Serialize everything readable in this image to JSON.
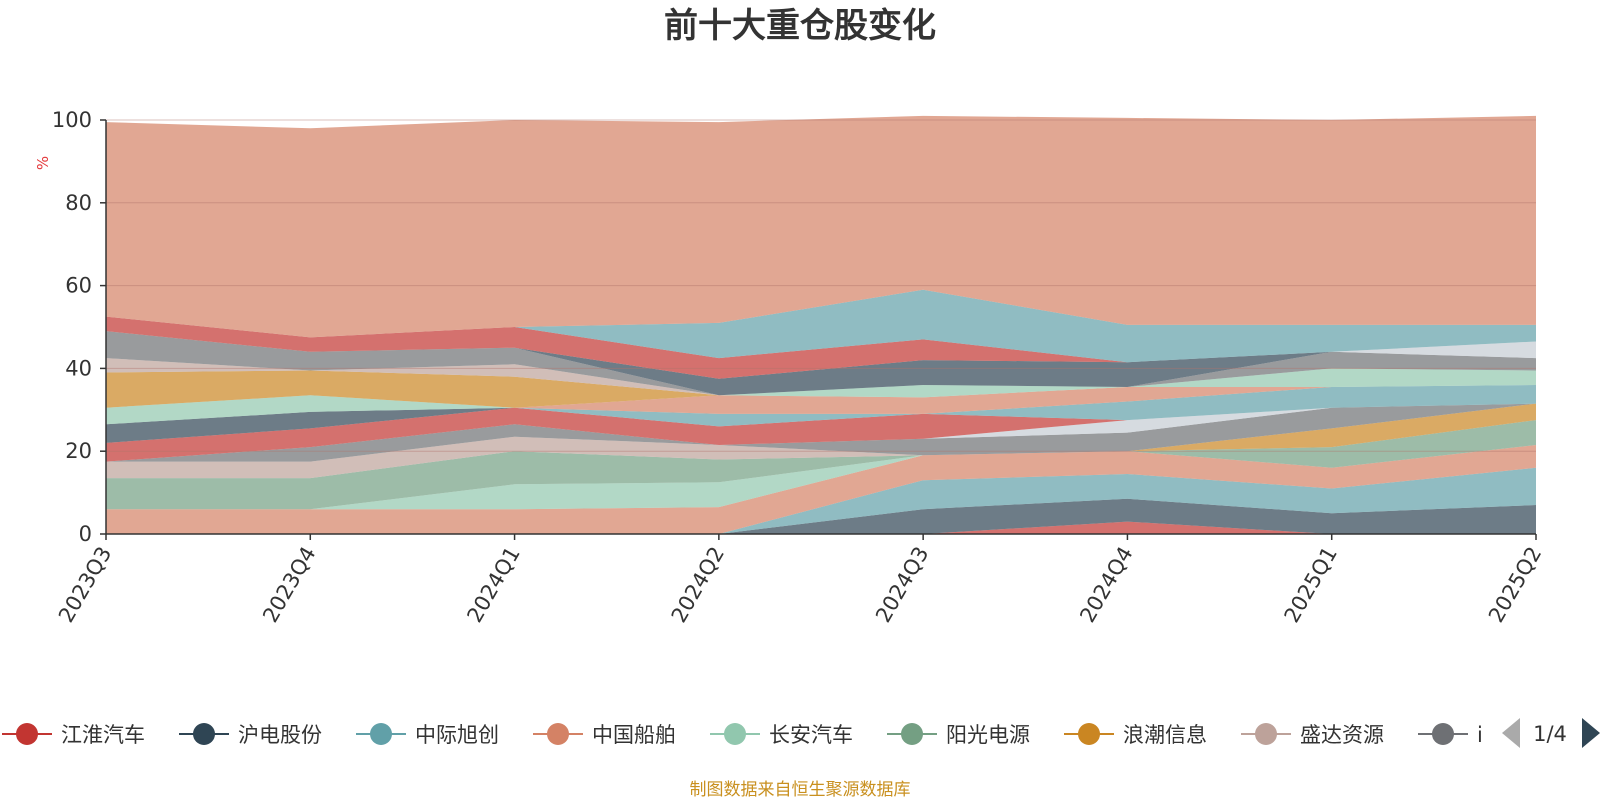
{
  "chart_data": {
    "type": "area",
    "title": "前十大重仓股变化",
    "ylabel": "%",
    "ylim": [
      0,
      100
    ],
    "yticks": [
      0,
      20,
      40,
      60,
      80,
      100
    ],
    "grid": true,
    "legend_position": "bottom",
    "categories": [
      "2023Q3",
      "2023Q4",
      "2024Q1",
      "2024Q2",
      "2024Q3",
      "2024Q4",
      "2025Q1",
      "2025Q2"
    ],
    "series": [
      {
        "name": "江淮汽车",
        "color": "#c23531",
        "values": [
          0,
          0,
          0,
          0,
          0,
          3,
          0,
          0
        ]
      },
      {
        "name": "沪电股份",
        "color": "#2f4554",
        "values": [
          0,
          0,
          0,
          0,
          6,
          5.5,
          5,
          7
        ]
      },
      {
        "name": "中际旭创",
        "color": "#61a0a8",
        "values": [
          0,
          0,
          0,
          0,
          7,
          6,
          6,
          9
        ]
      },
      {
        "name": "中国船舶",
        "color": "#d48265",
        "values": [
          6,
          6,
          6,
          6.5,
          6,
          5.5,
          5,
          5.5
        ]
      },
      {
        "name": "长安汽车",
        "color": "#91c7ae",
        "values": [
          0,
          0,
          6,
          6,
          0,
          0,
          0,
          0
        ]
      },
      {
        "name": "阳光电源",
        "color": "#749f83",
        "values": [
          7.5,
          7.5,
          8,
          5.5,
          0,
          0,
          5,
          6
        ]
      },
      {
        "name": "浪潮信息",
        "color": "#ca8622",
        "values": [
          0,
          0,
          0,
          0,
          0,
          0,
          4.5,
          4
        ]
      },
      {
        "name": "盛达资源",
        "color": "#bda29a",
        "values": [
          4,
          4,
          3.5,
          3.5,
          0,
          0,
          0,
          0
        ]
      },
      {
        "name": "i",
        "color": "#6e7074",
        "values": [
          0,
          3.5,
          3,
          0,
          4,
          4.5,
          5,
          0
        ]
      },
      {
        "name": "",
        "color": "#c4ccd3",
        "values": [
          0,
          0,
          0,
          0,
          0,
          3,
          0,
          0
        ]
      },
      {
        "name": "",
        "color": "#c23531",
        "values": [
          4.5,
          4.5,
          4,
          4.5,
          6,
          0,
          0,
          0
        ]
      },
      {
        "name": "",
        "color": "#61a0a8",
        "values": [
          0,
          0,
          0,
          3,
          0,
          4.5,
          5,
          4.5
        ]
      },
      {
        "name": "",
        "color": "#2f4554",
        "values": [
          4.5,
          4,
          0,
          0,
          0,
          0,
          0,
          0
        ]
      },
      {
        "name": "",
        "color": "#d48265",
        "values": [
          0,
          0,
          0,
          4.5,
          4,
          3.5,
          0,
          0
        ]
      },
      {
        "name": "",
        "color": "#91c7ae",
        "values": [
          4,
          4,
          0,
          0,
          3,
          0,
          4.5,
          3.5
        ]
      },
      {
        "name": "",
        "color": "#ca8622",
        "values": [
          8.5,
          6,
          7.5,
          0,
          0,
          0,
          0,
          0
        ]
      },
      {
        "name": "",
        "color": "#bda29a",
        "values": [
          3.5,
          0,
          3,
          0,
          0,
          0,
          0,
          0
        ]
      },
      {
        "name": "",
        "color": "#6e7074",
        "values": [
          6.5,
          4.5,
          4,
          0,
          0,
          0,
          4,
          3
        ]
      },
      {
        "name": "",
        "color": "#c4ccd3",
        "values": [
          0,
          0,
          0,
          0,
          0,
          0,
          0,
          4
        ]
      },
      {
        "name": "",
        "color": "#2f4554",
        "values": [
          0,
          0,
          0,
          4,
          6,
          6,
          0,
          0
        ]
      },
      {
        "name": "",
        "color": "#c23531",
        "values": [
          3.5,
          3.5,
          5,
          5,
          5,
          0,
          0,
          0
        ]
      },
      {
        "name": "",
        "color": "#61a0a8",
        "values": [
          0,
          0,
          0,
          8.5,
          12,
          9,
          6.5,
          4
        ]
      },
      {
        "name": "",
        "color": "#d48265",
        "values": [
          47,
          50.5,
          50,
          48.5,
          42,
          50,
          49.5,
          50.5
        ]
      }
    ]
  },
  "legend": {
    "items": [
      {
        "label": "江淮汽车",
        "color": "#c23531"
      },
      {
        "label": "沪电股份",
        "color": "#2f4554"
      },
      {
        "label": "中际旭创",
        "color": "#61a0a8"
      },
      {
        "label": "中国船舶",
        "color": "#d48265"
      },
      {
        "label": "长安汽车",
        "color": "#91c7ae"
      },
      {
        "label": "阳光电源",
        "color": "#749f83"
      },
      {
        "label": "浪潮信息",
        "color": "#ca8622"
      },
      {
        "label": "盛达资源",
        "color": "#bda29a"
      },
      {
        "label": "i",
        "color": "#6e7074"
      }
    ],
    "page_indicator": "1/4",
    "prev_icon": "triangle-left-icon",
    "next_icon": "triangle-right-icon"
  },
  "footer": {
    "text": "制图数据来自恒生聚源数据库"
  }
}
